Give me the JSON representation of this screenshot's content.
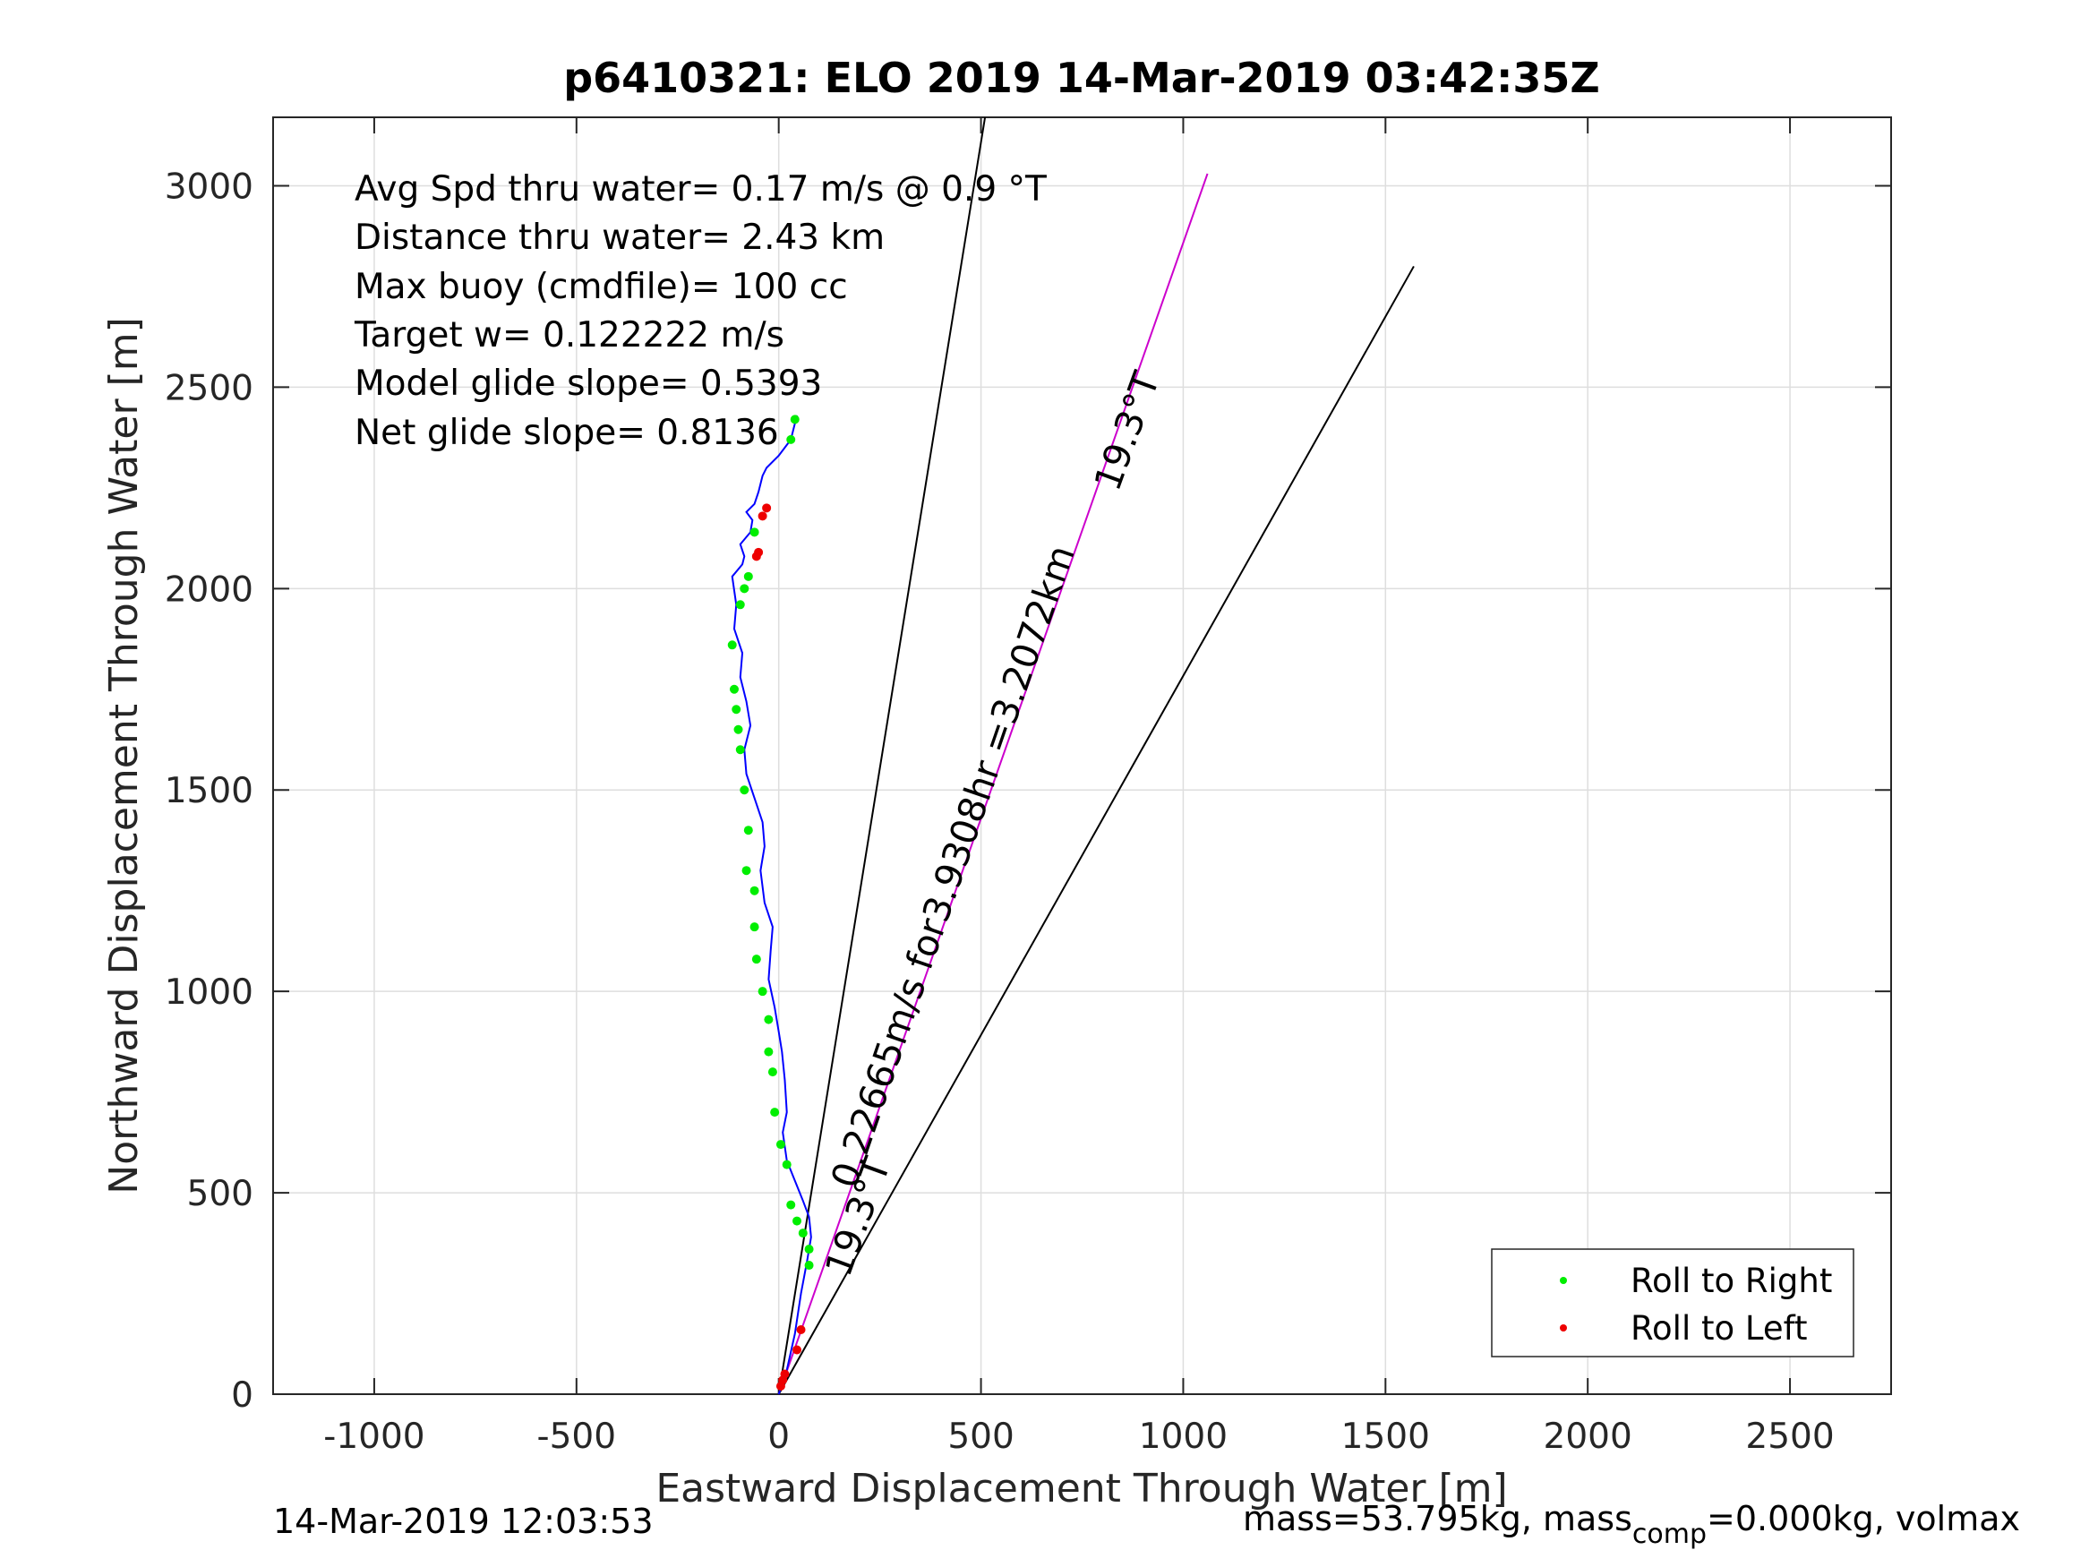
{
  "chart_data": {
    "type": "line",
    "title": "p6410321: ELO 2019 14-Mar-2019 03:42:35Z",
    "xlabel": "Eastward Displacement Through Water [m]",
    "ylabel": "Northward Displacement Through Water [m]",
    "xlim": [
      -1250,
      2750
    ],
    "ylim": [
      0,
      3170
    ],
    "xticks": [
      -1000,
      -500,
      0,
      500,
      1000,
      1500,
      2000,
      2500
    ],
    "xtick_labels": [
      "-1000",
      "-500",
      "0",
      "500",
      "1000",
      "1500",
      "2000",
      "2500"
    ],
    "yticks": [
      0,
      500,
      1000,
      1500,
      2000,
      2500,
      3000
    ],
    "ytick_labels": [
      "0",
      "500",
      "1000",
      "1500",
      "2000",
      "2500",
      "3000"
    ],
    "grid": true,
    "legend_position": "bottom-right",
    "annotations": [
      "Avg Spd thru water=  0.17 m/s @   0.9  °T",
      "Distance thru water=  2.43 km",
      "Max buoy (cmdfile)= 100 cc",
      "Target w= 0.122222 m/s",
      "Model glide slope= 0.5393",
      "Net glide slope= 0.8136"
    ],
    "track": {
      "name": "",
      "color": "#0000ff",
      "x": [
        0,
        20,
        40,
        55,
        70,
        80,
        75,
        60,
        40,
        20,
        10,
        20,
        15,
        8,
        0,
        -10,
        -25,
        -20,
        -15,
        -35,
        -45,
        -35,
        -40,
        -60,
        -80,
        -85,
        -70,
        -80,
        -95,
        -90,
        -110,
        -105,
        -115,
        -90,
        -85,
        -95,
        -70,
        -65,
        -80,
        -60,
        -50,
        -40,
        -30,
        0,
        30,
        45
      ],
      "y": [
        0,
        60,
        150,
        250,
        330,
        390,
        440,
        480,
        530,
        580,
        650,
        700,
        780,
        850,
        900,
        960,
        1030,
        1100,
        1160,
        1220,
        1300,
        1360,
        1420,
        1480,
        1540,
        1600,
        1660,
        1720,
        1780,
        1840,
        1900,
        1960,
        2030,
        2060,
        2080,
        2110,
        2140,
        2170,
        2190,
        2210,
        2240,
        2280,
        2300,
        2330,
        2370,
        2430
      ]
    },
    "lines": [
      {
        "name": "",
        "color": "#000000",
        "x": [
          0,
          510
        ],
        "y": [
          0,
          3170
        ]
      },
      {
        "name": "",
        "color": "#cc00cc",
        "x": [
          0,
          1060
        ],
        "y": [
          0,
          3030
        ]
      },
      {
        "name": "",
        "color": "#000000",
        "x": [
          0,
          1570
        ],
        "y": [
          0,
          2800
        ]
      }
    ],
    "text_labels": [
      {
        "text": "19.3°T",
        "x": 890,
        "y": 2380,
        "angle": -70
      },
      {
        "text": "0.22665m/s for3.9308hr =3.2072km",
        "x": 460,
        "y": 1300,
        "angle": -71
      },
      {
        "text": "19.3°T",
        "x": 225,
        "y": 430,
        "angle": -70
      }
    ],
    "scatter": [
      {
        "name": "Roll to Right",
        "color": "#00ee00",
        "x": [
          75,
          75,
          60,
          45,
          30,
          20,
          5,
          -10,
          -15,
          -25,
          -25,
          -40,
          -55,
          -60,
          -60,
          -80,
          -75,
          -85,
          -95,
          -100,
          -105,
          -110,
          -115,
          -95,
          -85,
          -75,
          -60,
          30,
          40
        ],
        "y": [
          320,
          360,
          400,
          430,
          470,
          570,
          620,
          700,
          800,
          850,
          930,
          1000,
          1080,
          1160,
          1250,
          1300,
          1400,
          1500,
          1600,
          1650,
          1700,
          1750,
          1860,
          1960,
          2000,
          2030,
          2140,
          2370,
          2420
        ]
      },
      {
        "name": "Roll to Left",
        "color": "#ee0000",
        "x": [
          5,
          10,
          15,
          45,
          55,
          -55,
          -50,
          -40,
          -30
        ],
        "y": [
          20,
          35,
          50,
          110,
          160,
          2080,
          2090,
          2180,
          2200
        ]
      }
    ]
  },
  "footer": {
    "timestamp": "14-Mar-2019 12:03:53",
    "mass_text": "mass=53.795kg, mass",
    "mass_sub": "comp",
    "mass_rest": "=0.000kg, volmax"
  }
}
